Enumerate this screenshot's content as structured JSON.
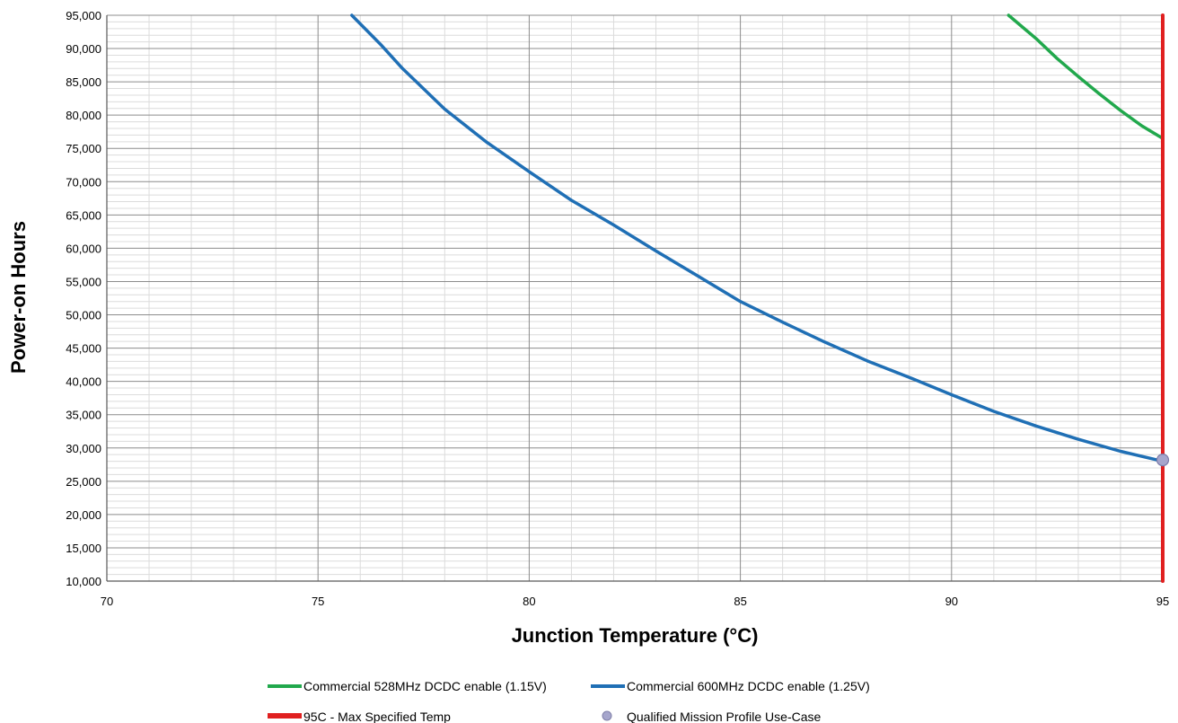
{
  "chart_data": {
    "type": "line",
    "title": "",
    "xlabel": "Junction Temperature (°C)",
    "ylabel": "Power-on Hours",
    "xlim": [
      70,
      95
    ],
    "ylim": [
      10000,
      95000
    ],
    "x_ticks": [
      "70",
      "75",
      "80",
      "85",
      "90",
      "95"
    ],
    "y_ticks": [
      "10,000",
      "15,000",
      "20,000",
      "25,000",
      "30,000",
      "35,000",
      "40,000",
      "45,000",
      "50,000",
      "55,000",
      "60,000",
      "65,000",
      "70,000",
      "75,000",
      "80,000",
      "85,000",
      "90,000",
      "95,000"
    ],
    "grid": "on",
    "legend_placement": "bottom",
    "series": [
      {
        "name": "Commercial 528MHz DCDC enable (1.15V)",
        "color": "#21a84c",
        "x": [
          91.35,
          92.0,
          92.5,
          93.0,
          93.5,
          94.0,
          94.5,
          95.0
        ],
        "y": [
          95000,
          91500,
          88500,
          85800,
          83200,
          80700,
          78400,
          76500
        ]
      },
      {
        "name": "Commercial 600MHz DCDC enable (1.25V)",
        "color": "#1f6fb5",
        "x": [
          75.8,
          76.5,
          77.0,
          78.0,
          79.0,
          80.0,
          81.0,
          82.0,
          83.0,
          84.0,
          85.0,
          86.0,
          87.0,
          88.0,
          89.0,
          90.0,
          91.0,
          92.0,
          93.0,
          94.0,
          95.0
        ],
        "y": [
          95000,
          90500,
          87000,
          80900,
          75900,
          71500,
          67200,
          63500,
          59600,
          55800,
          52000,
          48900,
          45900,
          43100,
          40600,
          38000,
          35500,
          33300,
          31300,
          29500,
          28000
        ]
      },
      {
        "name": "95C - Max Specified Temp",
        "color": "#e02020",
        "x": [
          95,
          95
        ],
        "y": [
          10000,
          95000
        ]
      },
      {
        "name": "Qualified Mission Profile Use-Case",
        "color": "#a6a6cc",
        "type": "scatter",
        "x": [
          95
        ],
        "y": [
          28200
        ]
      }
    ]
  }
}
